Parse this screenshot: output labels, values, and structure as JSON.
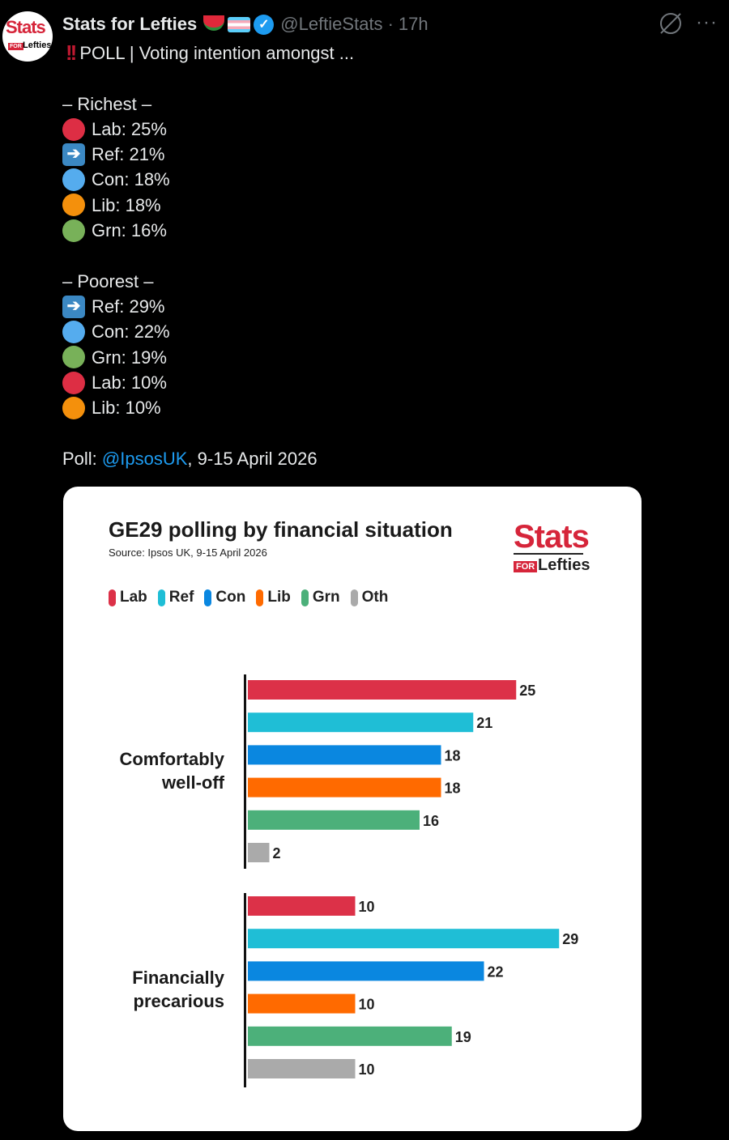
{
  "post": {
    "avatar_text_top": "Stats",
    "avatar_text_for": "FOR",
    "avatar_text_bottom": "Lefties",
    "author_name": "Stats for Lefties",
    "author_emojis": [
      "watermelon-icon",
      "trans-flag-icon"
    ],
    "verified_icon": "verified-badge-icon",
    "handle": "@LeftieStats",
    "separator": "·",
    "time": "17h",
    "top_right_icons": [
      "grok-icon",
      "more-icon"
    ],
    "headline_icon": "double-exclamation-icon",
    "headline": "POLL | Voting intention amongst ...",
    "richest_header": "– Richest –",
    "richest": [
      {
        "icon": "red-circle",
        "color": "#dd2e44",
        "text": "Lab: 25%"
      },
      {
        "icon": "right-arrow",
        "color": "#3b88c3",
        "text": "Ref: 21%"
      },
      {
        "icon": "blue-circle",
        "color": "#55acee",
        "text": "Con: 18%"
      },
      {
        "icon": "orange-circle",
        "color": "#f4900c",
        "text": "Lib: 18%"
      },
      {
        "icon": "green-circle",
        "color": "#78b159",
        "text": "Grn: 16%"
      }
    ],
    "poorest_header": "– Poorest –",
    "poorest": [
      {
        "icon": "right-arrow",
        "color": "#3b88c3",
        "text": "Ref: 29%"
      },
      {
        "icon": "blue-circle",
        "color": "#55acee",
        "text": "Con: 22%"
      },
      {
        "icon": "green-circle",
        "color": "#78b159",
        "text": "Grn: 19%"
      },
      {
        "icon": "red-circle",
        "color": "#dd2e44",
        "text": "Lab: 10%"
      },
      {
        "icon": "orange-circle",
        "color": "#f4900c",
        "text": "Lib: 10%"
      }
    ],
    "poll_prefix": "Poll: ",
    "poll_mention": "@IpsosUK",
    "poll_suffix": ", 9-15 April 2026"
  },
  "card": {
    "logo_stats": "Stats",
    "logo_for": "FOR",
    "logo_lefties": "Lefties"
  },
  "chart_data": {
    "type": "bar",
    "orientation": "horizontal",
    "title": "GE29 polling by financial situation",
    "subtitle": "Source: Ipsos UK, 9-15 April 2026",
    "legend": [
      {
        "name": "Lab",
        "color": "#dc3148"
      },
      {
        "name": "Ref",
        "color": "#1fbed6"
      },
      {
        "name": "Con",
        "color": "#0a87e0"
      },
      {
        "name": "Lib",
        "color": "#ff6a00"
      },
      {
        "name": "Grn",
        "color": "#4cb07a"
      },
      {
        "name": "Oth",
        "color": "#aaaaaa"
      }
    ],
    "legend_position": "top-left",
    "grid": false,
    "xlim": [
      0,
      30
    ],
    "categories": [
      {
        "label_lines": [
          "Comfortably",
          "well-off"
        ],
        "values": [
          25,
          21,
          18,
          18,
          16,
          2
        ]
      },
      {
        "label_lines": [
          "Financially",
          "precarious"
        ],
        "values": [
          10,
          29,
          22,
          10,
          19,
          10
        ]
      }
    ],
    "series": [
      "Lab",
      "Ref",
      "Con",
      "Lib",
      "Grn",
      "Oth"
    ]
  }
}
